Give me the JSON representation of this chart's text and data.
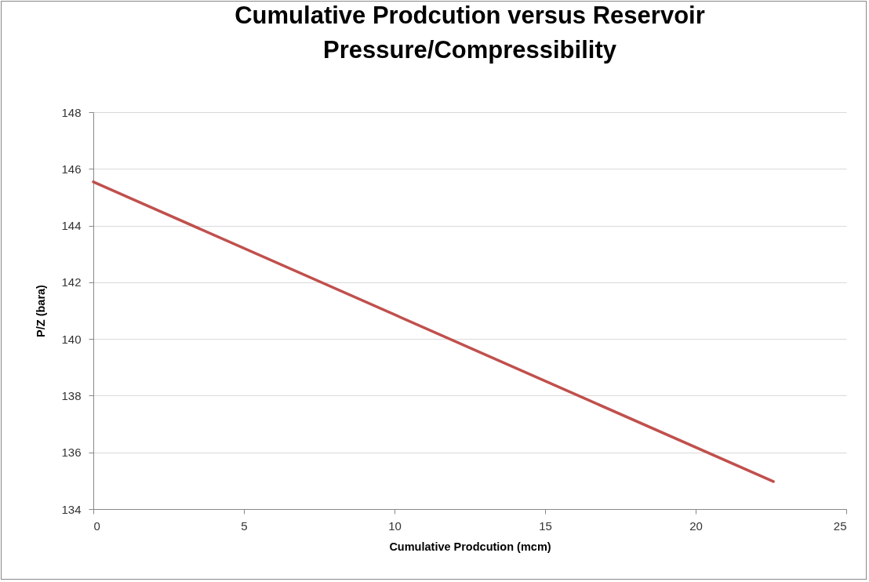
{
  "chart_data": {
    "type": "line",
    "title": "Cumulative Prodcution versus Reservoir Pressure/Compressibility",
    "xlabel": "Cumulative Prodcution (mcm)",
    "ylabel": "P/Z (bara)",
    "x": [
      0,
      22.58
    ],
    "series": [
      {
        "color": "#c0504d",
        "values": [
          145.54,
          134.97
        ]
      }
    ],
    "xlim": [
      0,
      25
    ],
    "xticks": [
      0,
      5,
      10,
      15,
      20,
      25
    ],
    "ylim": [
      134,
      148
    ],
    "yticks": [
      134,
      136,
      138,
      140,
      142,
      144,
      146,
      148
    ],
    "grid": "y",
    "legend": false,
    "marker": "none",
    "line_style": "solid"
  }
}
